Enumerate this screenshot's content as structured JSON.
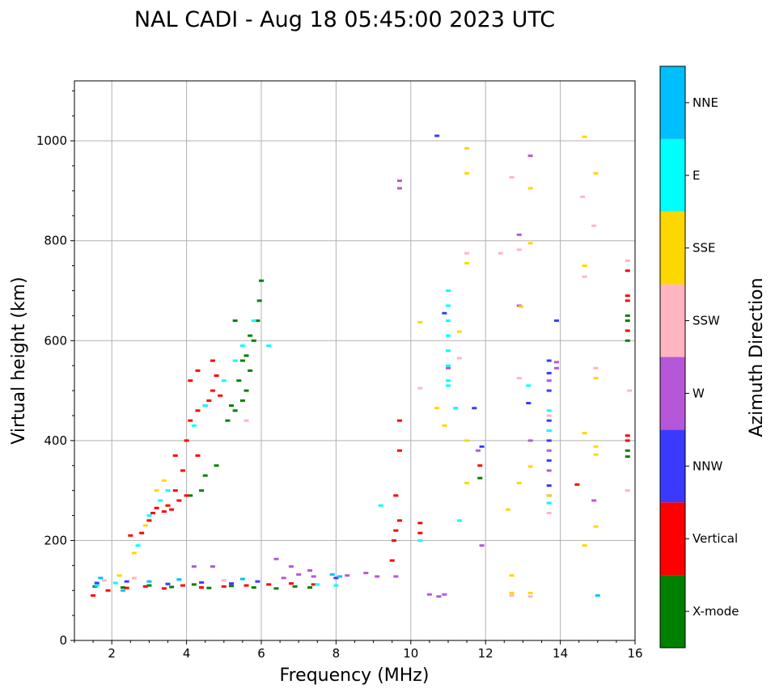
{
  "chart_data": {
    "type": "scatter",
    "title": "NAL CADI - Aug 18 05:45:00 2023 UTC",
    "xlabel": "Frequency (MHz)",
    "ylabel": "Virtual height (km)",
    "xlim": [
      1,
      16
    ],
    "ylim": [
      0,
      1120
    ],
    "xticks": [
      2,
      4,
      6,
      8,
      10,
      12,
      14,
      16
    ],
    "yticks": [
      0,
      200,
      400,
      600,
      800,
      1000
    ],
    "grid": true,
    "colorbar": {
      "label": "Azimuth Direction",
      "categories": [
        {
          "name": "X-mode",
          "color": "#008000"
        },
        {
          "name": "Vertical",
          "color": "#ff0000"
        },
        {
          "name": "NNW",
          "color": "#3a3aff"
        },
        {
          "name": "W",
          "color": "#b657d9"
        },
        {
          "name": "SSW",
          "color": "#ffb6c1"
        },
        {
          "name": "SSE",
          "color": "#ffd700"
        },
        {
          "name": "E",
          "color": "#00ffff"
        },
        {
          "name": "NNE",
          "color": "#00bfff"
        }
      ]
    },
    "series": [
      {
        "name": "X-mode",
        "points": [
          [
            1.55,
            108
          ],
          [
            2.3,
            106
          ],
          [
            3.0,
            110
          ],
          [
            3.6,
            107
          ],
          [
            4.2,
            112
          ],
          [
            4.6,
            105
          ],
          [
            5.2,
            109
          ],
          [
            5.8,
            106
          ],
          [
            6.4,
            104
          ],
          [
            6.9,
            108
          ],
          [
            7.3,
            106
          ],
          [
            4.1,
            290
          ],
          [
            4.4,
            300
          ],
          [
            4.5,
            330
          ],
          [
            4.8,
            350
          ],
          [
            5.1,
            440
          ],
          [
            5.2,
            470
          ],
          [
            5.3,
            460
          ],
          [
            5.4,
            520
          ],
          [
            5.5,
            480
          ],
          [
            5.6,
            500
          ],
          [
            5.7,
            540
          ],
          [
            5.8,
            600
          ],
          [
            5.9,
            640
          ],
          [
            5.95,
            680
          ],
          [
            6.0,
            720
          ],
          [
            5.5,
            560
          ],
          [
            5.3,
            640
          ],
          [
            5.6,
            570
          ],
          [
            5.7,
            610
          ],
          [
            11.85,
            325
          ],
          [
            15.8,
            650
          ],
          [
            15.8,
            640
          ],
          [
            15.8,
            600
          ],
          [
            15.8,
            380
          ],
          [
            15.8,
            368
          ]
        ]
      },
      {
        "name": "Vertical",
        "points": [
          [
            1.5,
            90
          ],
          [
            1.9,
            100
          ],
          [
            2.4,
            105
          ],
          [
            2.9,
            108
          ],
          [
            3.4,
            104
          ],
          [
            3.9,
            110
          ],
          [
            4.4,
            106
          ],
          [
            5.0,
            108
          ],
          [
            5.6,
            110
          ],
          [
            6.2,
            112
          ],
          [
            6.8,
            114
          ],
          [
            7.4,
            112
          ],
          [
            2.5,
            210
          ],
          [
            2.8,
            215
          ],
          [
            3.0,
            240
          ],
          [
            3.1,
            255
          ],
          [
            3.2,
            265
          ],
          [
            3.4,
            258
          ],
          [
            3.5,
            270
          ],
          [
            3.6,
            262
          ],
          [
            3.8,
            280
          ],
          [
            4.0,
            290
          ],
          [
            3.7,
            300
          ],
          [
            3.9,
            340
          ],
          [
            3.7,
            370
          ],
          [
            4.3,
            370
          ],
          [
            4.0,
            400
          ],
          [
            4.1,
            440
          ],
          [
            4.3,
            460
          ],
          [
            4.5,
            470
          ],
          [
            4.6,
            480
          ],
          [
            4.7,
            500
          ],
          [
            4.8,
            530
          ],
          [
            4.1,
            520
          ],
          [
            4.3,
            540
          ],
          [
            4.7,
            560
          ],
          [
            4.9,
            490
          ],
          [
            9.5,
            160
          ],
          [
            9.55,
            200
          ],
          [
            9.6,
            220
          ],
          [
            9.7,
            240
          ],
          [
            9.6,
            290
          ],
          [
            9.7,
            380
          ],
          [
            9.7,
            440
          ],
          [
            10.25,
            235
          ],
          [
            10.25,
            215
          ],
          [
            11.85,
            350
          ],
          [
            14.45,
            312
          ],
          [
            15.8,
            690
          ],
          [
            15.8,
            680
          ],
          [
            15.8,
            620
          ],
          [
            15.8,
            740
          ],
          [
            15.8,
            410
          ],
          [
            15.8,
            400
          ]
        ]
      },
      {
        "name": "NNW",
        "points": [
          [
            1.6,
            115
          ],
          [
            2.4,
            118
          ],
          [
            3.5,
            113
          ],
          [
            4.4,
            116
          ],
          [
            5.2,
            114
          ],
          [
            5.9,
            118
          ],
          [
            8.0,
            125
          ],
          [
            10.7,
            1010
          ],
          [
            10.9,
            655
          ],
          [
            11.7,
            465
          ],
          [
            11.9,
            388
          ],
          [
            13.15,
            475
          ],
          [
            13.7,
            560
          ],
          [
            13.7,
            535
          ],
          [
            13.7,
            500
          ],
          [
            13.7,
            440
          ],
          [
            13.7,
            400
          ],
          [
            13.7,
            360
          ],
          [
            13.7,
            310
          ],
          [
            13.7,
            290
          ],
          [
            13.9,
            640
          ]
        ]
      },
      {
        "name": "W",
        "points": [
          [
            4.2,
            148
          ],
          [
            4.7,
            148
          ],
          [
            6.4,
            163
          ],
          [
            6.8,
            148
          ],
          [
            7.3,
            140
          ],
          [
            7.0,
            132
          ],
          [
            7.4,
            128
          ],
          [
            6.6,
            125
          ],
          [
            8.3,
            130
          ],
          [
            8.8,
            135
          ],
          [
            9.1,
            128
          ],
          [
            9.6,
            128
          ],
          [
            9.7,
            920
          ],
          [
            9.7,
            905
          ],
          [
            10.5,
            92
          ],
          [
            10.75,
            88
          ],
          [
            10.9,
            92
          ],
          [
            11.0,
            545
          ],
          [
            11.8,
            380
          ],
          [
            11.9,
            190
          ],
          [
            12.9,
            812
          ],
          [
            12.9,
            670
          ],
          [
            13.2,
            970
          ],
          [
            13.2,
            400
          ],
          [
            13.7,
            520
          ],
          [
            13.7,
            420
          ],
          [
            13.7,
            380
          ],
          [
            13.7,
            340
          ],
          [
            13.9,
            557
          ],
          [
            13.9,
            545
          ],
          [
            14.9,
            280
          ]
        ]
      },
      {
        "name": "SSW",
        "points": [
          [
            1.8,
            120
          ],
          [
            2.6,
            125
          ],
          [
            5.0,
            120
          ],
          [
            5.6,
            440
          ],
          [
            10.25,
            505
          ],
          [
            11.3,
            565
          ],
          [
            11.5,
            775
          ],
          [
            12.4,
            775
          ],
          [
            12.7,
            927
          ],
          [
            12.9,
            782
          ],
          [
            12.9,
            525
          ],
          [
            12.7,
            90
          ],
          [
            13.2,
            88
          ],
          [
            13.7,
            255
          ],
          [
            13.7,
            450
          ],
          [
            14.6,
            888
          ],
          [
            14.65,
            728
          ],
          [
            14.9,
            830
          ],
          [
            14.95,
            545
          ],
          [
            15.85,
            500
          ],
          [
            15.8,
            760
          ],
          [
            15.8,
            300
          ]
        ]
      },
      {
        "name": "SSE",
        "points": [
          [
            2.2,
            130
          ],
          [
            2.6,
            175
          ],
          [
            2.9,
            230
          ],
          [
            3.2,
            300
          ],
          [
            3.4,
            320
          ],
          [
            10.25,
            637
          ],
          [
            10.7,
            465
          ],
          [
            10.9,
            430
          ],
          [
            11.3,
            618
          ],
          [
            11.5,
            985
          ],
          [
            11.5,
            935
          ],
          [
            11.5,
            755
          ],
          [
            11.5,
            400
          ],
          [
            11.5,
            315
          ],
          [
            12.6,
            262
          ],
          [
            12.7,
            130
          ],
          [
            12.7,
            95
          ],
          [
            12.9,
            315
          ],
          [
            12.95,
            668
          ],
          [
            13.2,
            905
          ],
          [
            13.2,
            795
          ],
          [
            13.2,
            348
          ],
          [
            13.2,
            95
          ],
          [
            13.7,
            290
          ],
          [
            13.7,
            275
          ],
          [
            14.65,
            1008
          ],
          [
            14.65,
            750
          ],
          [
            14.65,
            415
          ],
          [
            14.65,
            190
          ],
          [
            14.95,
            935
          ],
          [
            14.95,
            525
          ],
          [
            14.95,
            388
          ],
          [
            14.95,
            372
          ],
          [
            14.95,
            228
          ]
        ]
      },
      {
        "name": "E",
        "points": [
          [
            1.6,
            110
          ],
          [
            2.1,
            115
          ],
          [
            2.7,
            190
          ],
          [
            3.0,
            250
          ],
          [
            3.3,
            280
          ],
          [
            3.5,
            300
          ],
          [
            4.2,
            430
          ],
          [
            4.5,
            470
          ],
          [
            5.0,
            520
          ],
          [
            5.3,
            560
          ],
          [
            5.5,
            590
          ],
          [
            5.8,
            640
          ],
          [
            6.2,
            590
          ],
          [
            7.5,
            112
          ],
          [
            8.0,
            110
          ],
          [
            9.2,
            270
          ],
          [
            10.25,
            200
          ],
          [
            11.0,
            700
          ],
          [
            11.0,
            670
          ],
          [
            11.0,
            640
          ],
          [
            11.0,
            610
          ],
          [
            11.0,
            580
          ],
          [
            11.0,
            550
          ],
          [
            11.0,
            520
          ],
          [
            11.0,
            510
          ],
          [
            11.2,
            465
          ],
          [
            11.3,
            240
          ],
          [
            13.15,
            510
          ],
          [
            13.7,
            460
          ],
          [
            13.7,
            420
          ],
          [
            13.7,
            275
          ]
        ]
      },
      {
        "name": "NNE",
        "points": [
          [
            1.7,
            125
          ],
          [
            2.3,
            100
          ],
          [
            3.0,
            118
          ],
          [
            3.8,
            122
          ],
          [
            5.5,
            123
          ],
          [
            7.9,
            132
          ],
          [
            8.1,
            128
          ],
          [
            15.0,
            90
          ]
        ]
      }
    ]
  }
}
